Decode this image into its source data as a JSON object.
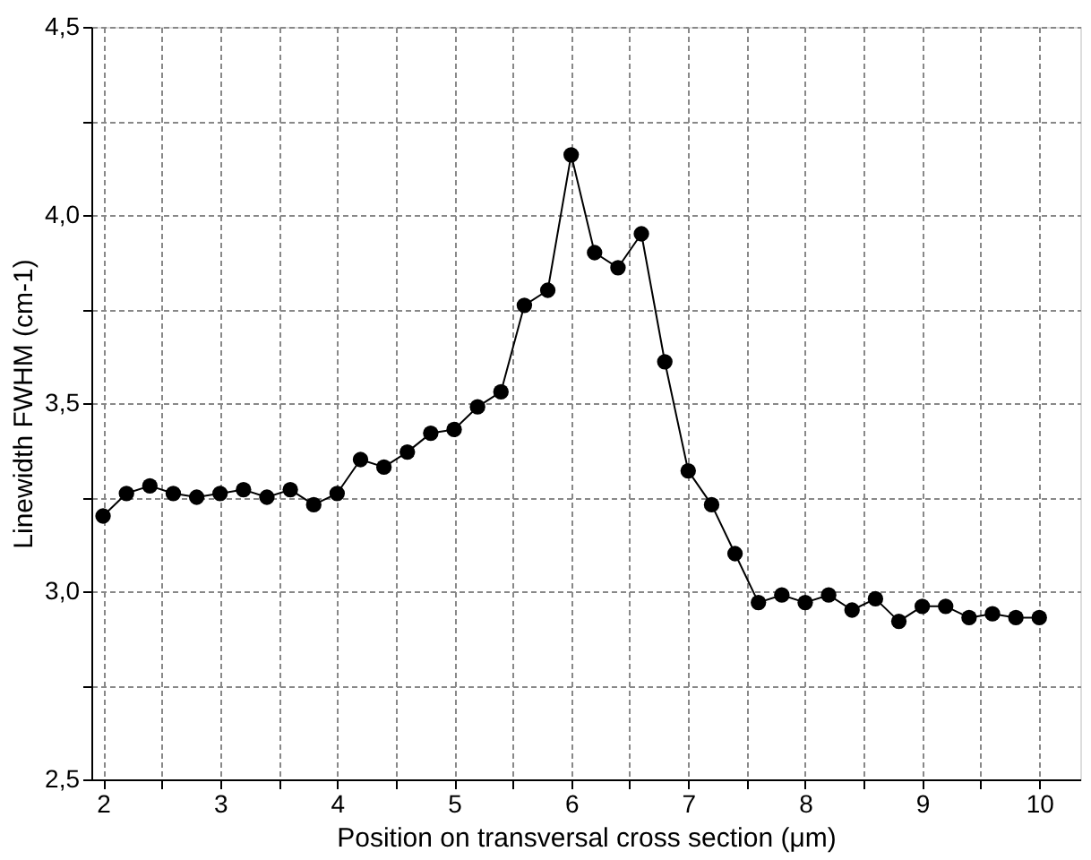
{
  "chart_data": {
    "type": "line",
    "xlabel": "Position on transversal cross section (μm)",
    "ylabel": "Linewidth FWHM (cm-1)",
    "x": [
      2.0,
      2.2,
      2.4,
      2.6,
      2.8,
      3.0,
      3.2,
      3.4,
      3.6,
      3.8,
      4.0,
      4.2,
      4.4,
      4.6,
      4.8,
      5.0,
      5.2,
      5.4,
      5.6,
      5.8,
      6.0,
      6.2,
      6.4,
      6.6,
      6.8,
      7.0,
      7.2,
      7.4,
      7.6,
      7.8,
      8.0,
      8.2,
      8.4,
      8.6,
      8.8,
      9.0,
      9.2,
      9.4,
      9.6,
      9.8,
      10.0
    ],
    "series": [
      {
        "color": "#000000",
        "values": [
          3.2,
          3.26,
          3.28,
          3.26,
          3.25,
          3.26,
          3.27,
          3.25,
          3.27,
          3.23,
          3.26,
          3.35,
          3.33,
          3.37,
          3.42,
          3.43,
          3.49,
          3.53,
          3.76,
          3.8,
          4.16,
          3.9,
          3.86,
          3.95,
          3.61,
          3.32,
          3.23,
          3.1,
          2.97,
          2.99,
          2.97,
          2.99,
          2.95,
          2.98,
          2.92,
          2.96,
          2.96,
          2.93,
          2.94,
          2.93,
          2.93
        ]
      }
    ],
    "xlim": [
      1.9,
      10.35
    ],
    "ylim": [
      2.5,
      4.5
    ],
    "xticks": [
      2,
      {
        "value": 2.5,
        "label": null
      },
      3,
      {
        "value": 3.5,
        "label": null
      },
      4,
      {
        "value": 4.5,
        "label": null
      },
      5,
      {
        "value": 5.5,
        "label": null
      },
      6,
      {
        "value": 6.5,
        "label": null
      },
      7,
      {
        "value": 7.5,
        "label": null
      },
      8,
      {
        "value": 8.5,
        "label": null
      },
      9,
      {
        "value": 9.5,
        "label": null
      },
      10
    ],
    "yticks": [
      {
        "value": 2.5,
        "label": "2,5"
      },
      {
        "value": 2.75,
        "label": null
      },
      {
        "value": 3.0,
        "label": "3,0"
      },
      {
        "value": 3.25,
        "label": null
      },
      {
        "value": 3.5,
        "label": "3,5"
      },
      {
        "value": 3.75,
        "label": null
      },
      {
        "value": 4.0,
        "label": "4,0"
      },
      {
        "value": 4.25,
        "label": null
      },
      {
        "value": 4.5,
        "label": "4,5"
      }
    ],
    "grid": true,
    "marker": "circle",
    "line_style": "solid"
  }
}
